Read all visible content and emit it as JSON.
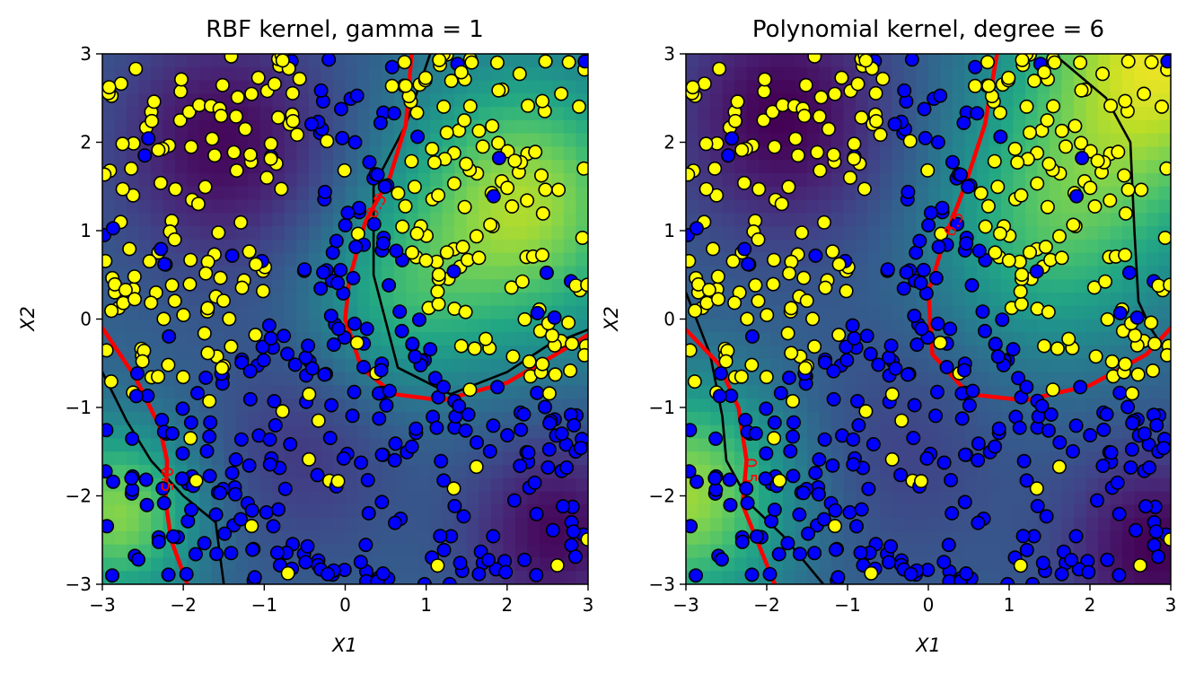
{
  "chart_data": [
    {
      "type": "contour-scatter",
      "title": "RBF kernel, gamma = 1",
      "xlabel": "X1",
      "ylabel": "X2",
      "xlim": [
        -3,
        3
      ],
      "ylim": [
        -3,
        3
      ],
      "xticks": [
        -3,
        -2,
        -1,
        0,
        1,
        2,
        3
      ],
      "yticks": [
        -3,
        -2,
        -1,
        0,
        1,
        2,
        3
      ],
      "xtick_labels": [
        "−3",
        "−2",
        "−1",
        "0",
        "1",
        "2",
        "3"
      ],
      "ytick_labels": [
        "−3",
        "−2",
        "−1",
        "0",
        "1",
        "2",
        "3"
      ],
      "colormap": "viridis",
      "grid": false,
      "contour_level_label": "0.5",
      "class_colors": {
        "class_0": "#0000ff",
        "class_1": "#ffff00"
      },
      "boundary_color": "#000000",
      "decision_curve_color": "#ff0000",
      "decision_curves": [
        [
          [
            0.82,
            3.0
          ],
          [
            0.75,
            2.2
          ],
          [
            0.55,
            1.6
          ],
          [
            0.25,
            1.1
          ],
          [
            0.05,
            0.45
          ],
          [
            0.0,
            0.0
          ],
          [
            0.2,
            -0.55
          ],
          [
            0.6,
            -0.85
          ],
          [
            1.2,
            -0.92
          ],
          [
            2.0,
            -0.72
          ],
          [
            2.6,
            -0.4
          ],
          [
            3.0,
            -0.18
          ]
        ],
        [
          [
            -3.0,
            -0.1
          ],
          [
            -2.6,
            -0.65
          ],
          [
            -2.3,
            -1.2
          ],
          [
            -2.2,
            -1.6
          ],
          [
            -2.22,
            -2.05
          ],
          [
            -2.15,
            -2.5
          ],
          [
            -1.95,
            -3.0
          ]
        ]
      ],
      "boundary_curves": [
        [
          [
            1.05,
            3.0
          ],
          [
            0.75,
            2.2
          ],
          [
            0.35,
            1.5
          ],
          [
            0.35,
            0.5
          ],
          [
            0.65,
            -0.55
          ],
          [
            1.3,
            -0.85
          ],
          [
            2.0,
            -0.6
          ],
          [
            2.5,
            -0.3
          ],
          [
            3.0,
            -0.12
          ]
        ],
        [
          [
            -3.0,
            -0.6
          ],
          [
            -2.7,
            -1.15
          ],
          [
            -2.4,
            -1.6
          ],
          [
            -2.0,
            -2.0
          ],
          [
            -1.6,
            -2.3
          ],
          [
            -1.5,
            -3.0
          ]
        ]
      ]
    },
    {
      "type": "contour-scatter",
      "title": "Polynomial kernel, degree = 6",
      "xlabel": "X1",
      "ylabel": "X2",
      "xlim": [
        -3,
        3
      ],
      "ylim": [
        -3,
        3
      ],
      "xticks": [
        -3,
        -2,
        -1,
        0,
        1,
        2,
        3
      ],
      "yticks": [
        -3,
        -2,
        -1,
        0,
        1,
        2,
        3
      ],
      "xtick_labels": [
        "−3",
        "−2",
        "−1",
        "0",
        "1",
        "2",
        "3"
      ],
      "ytick_labels": [
        "−3",
        "−2",
        "−1",
        "0",
        "1",
        "2",
        "3"
      ],
      "colormap": "viridis",
      "grid": false,
      "contour_level_label": "0.5",
      "class_colors": {
        "class_0": "#0000ff",
        "class_1": "#ffff00"
      },
      "boundary_color": "#000000",
      "decision_curve_color": "#ff0000",
      "decision_curves": [
        [
          [
            0.85,
            3.0
          ],
          [
            0.7,
            2.2
          ],
          [
            0.45,
            1.5
          ],
          [
            0.2,
            0.9
          ],
          [
            0.0,
            0.3
          ],
          [
            0.05,
            -0.4
          ],
          [
            0.5,
            -0.85
          ],
          [
            1.2,
            -0.92
          ],
          [
            2.0,
            -0.75
          ],
          [
            2.7,
            -0.4
          ],
          [
            3.0,
            -0.1
          ]
        ],
        [
          [
            -3.0,
            -0.12
          ],
          [
            -2.6,
            -0.5
          ],
          [
            -2.35,
            -1.0
          ],
          [
            -2.25,
            -1.6
          ],
          [
            -2.3,
            -2.1
          ],
          [
            -2.1,
            -2.55
          ],
          [
            -1.9,
            -3.0
          ]
        ]
      ],
      "boundary_curves": [
        [
          [
            1.55,
            3.0
          ],
          [
            2.2,
            2.5
          ],
          [
            2.5,
            2.0
          ],
          [
            2.55,
            1.0
          ],
          [
            2.6,
            0.2
          ],
          [
            2.75,
            -0.1
          ],
          [
            3.0,
            -0.45
          ]
        ],
        [
          [
            -3.0,
            0.3
          ],
          [
            -2.7,
            -0.4
          ],
          [
            -2.55,
            -1.1
          ],
          [
            -2.5,
            -1.6
          ],
          [
            -2.2,
            -2.1
          ],
          [
            -1.8,
            -2.45
          ],
          [
            -1.3,
            -3.0
          ]
        ]
      ]
    }
  ]
}
